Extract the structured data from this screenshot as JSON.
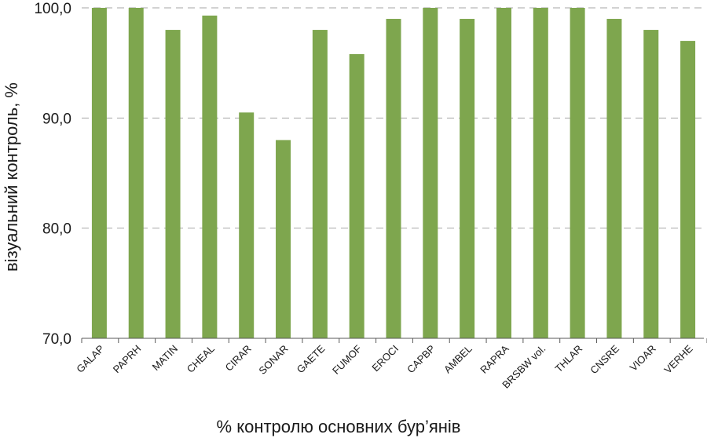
{
  "chart_data": {
    "type": "bar",
    "categories": [
      "GALAP",
      "PAPRH",
      "MATIN",
      "CHEAL",
      "CIRAR",
      "SONAR",
      "GAETE",
      "FUMOF",
      "EROCI",
      "CAPBP",
      "AMBEL",
      "RAPRA",
      "BRSBW vol.",
      "THLAR",
      "CNSRE",
      "VIOAR",
      "VERHE"
    ],
    "values": [
      100,
      100,
      98,
      99.3,
      90.5,
      88,
      98,
      95.8,
      99,
      100,
      99,
      100,
      100,
      100,
      99,
      98,
      97
    ],
    "ylim": [
      70,
      100
    ],
    "yticks": [
      "70,0",
      "80,0",
      "90,0",
      "100,0"
    ],
    "ytick_values": [
      70,
      80,
      90,
      100
    ],
    "xlabel": "% контролю основних бур’янів",
    "ylabel": "візуальний контроль, %",
    "grid": true,
    "bar_color": "#7ea64e"
  }
}
